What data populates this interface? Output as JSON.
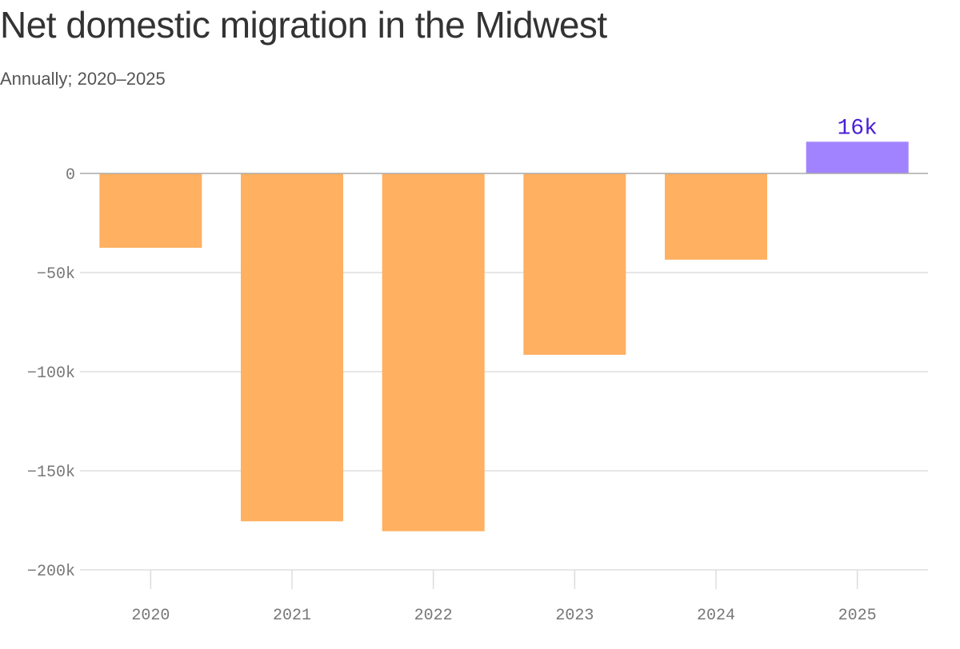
{
  "chart_data": {
    "type": "bar",
    "title": "Net domestic migration in the Midwest",
    "subtitle": "Annually; 2020–2025",
    "categories": [
      "2020",
      "2021",
      "2022",
      "2023",
      "2024",
      "2025"
    ],
    "values": [
      -37500,
      -175500,
      -180500,
      -91500,
      -43500,
      16000
    ],
    "ylim": [
      -200000,
      20000
    ],
    "yticks": [
      0,
      -50000,
      -100000,
      -150000,
      -200000
    ],
    "ytick_labels": [
      "0",
      "−50k",
      "−100k",
      "−150k",
      "−200k"
    ],
    "data_labels": [
      {
        "category": "2025",
        "text": "16k"
      }
    ],
    "grid": true,
    "legend": "none",
    "colors": {
      "negative": "#ffb060",
      "positive": "#a283ff",
      "label_highlight": "#4b1fd6",
      "grid": "#dddddd",
      "zero_line": "#aaaaaa"
    }
  }
}
